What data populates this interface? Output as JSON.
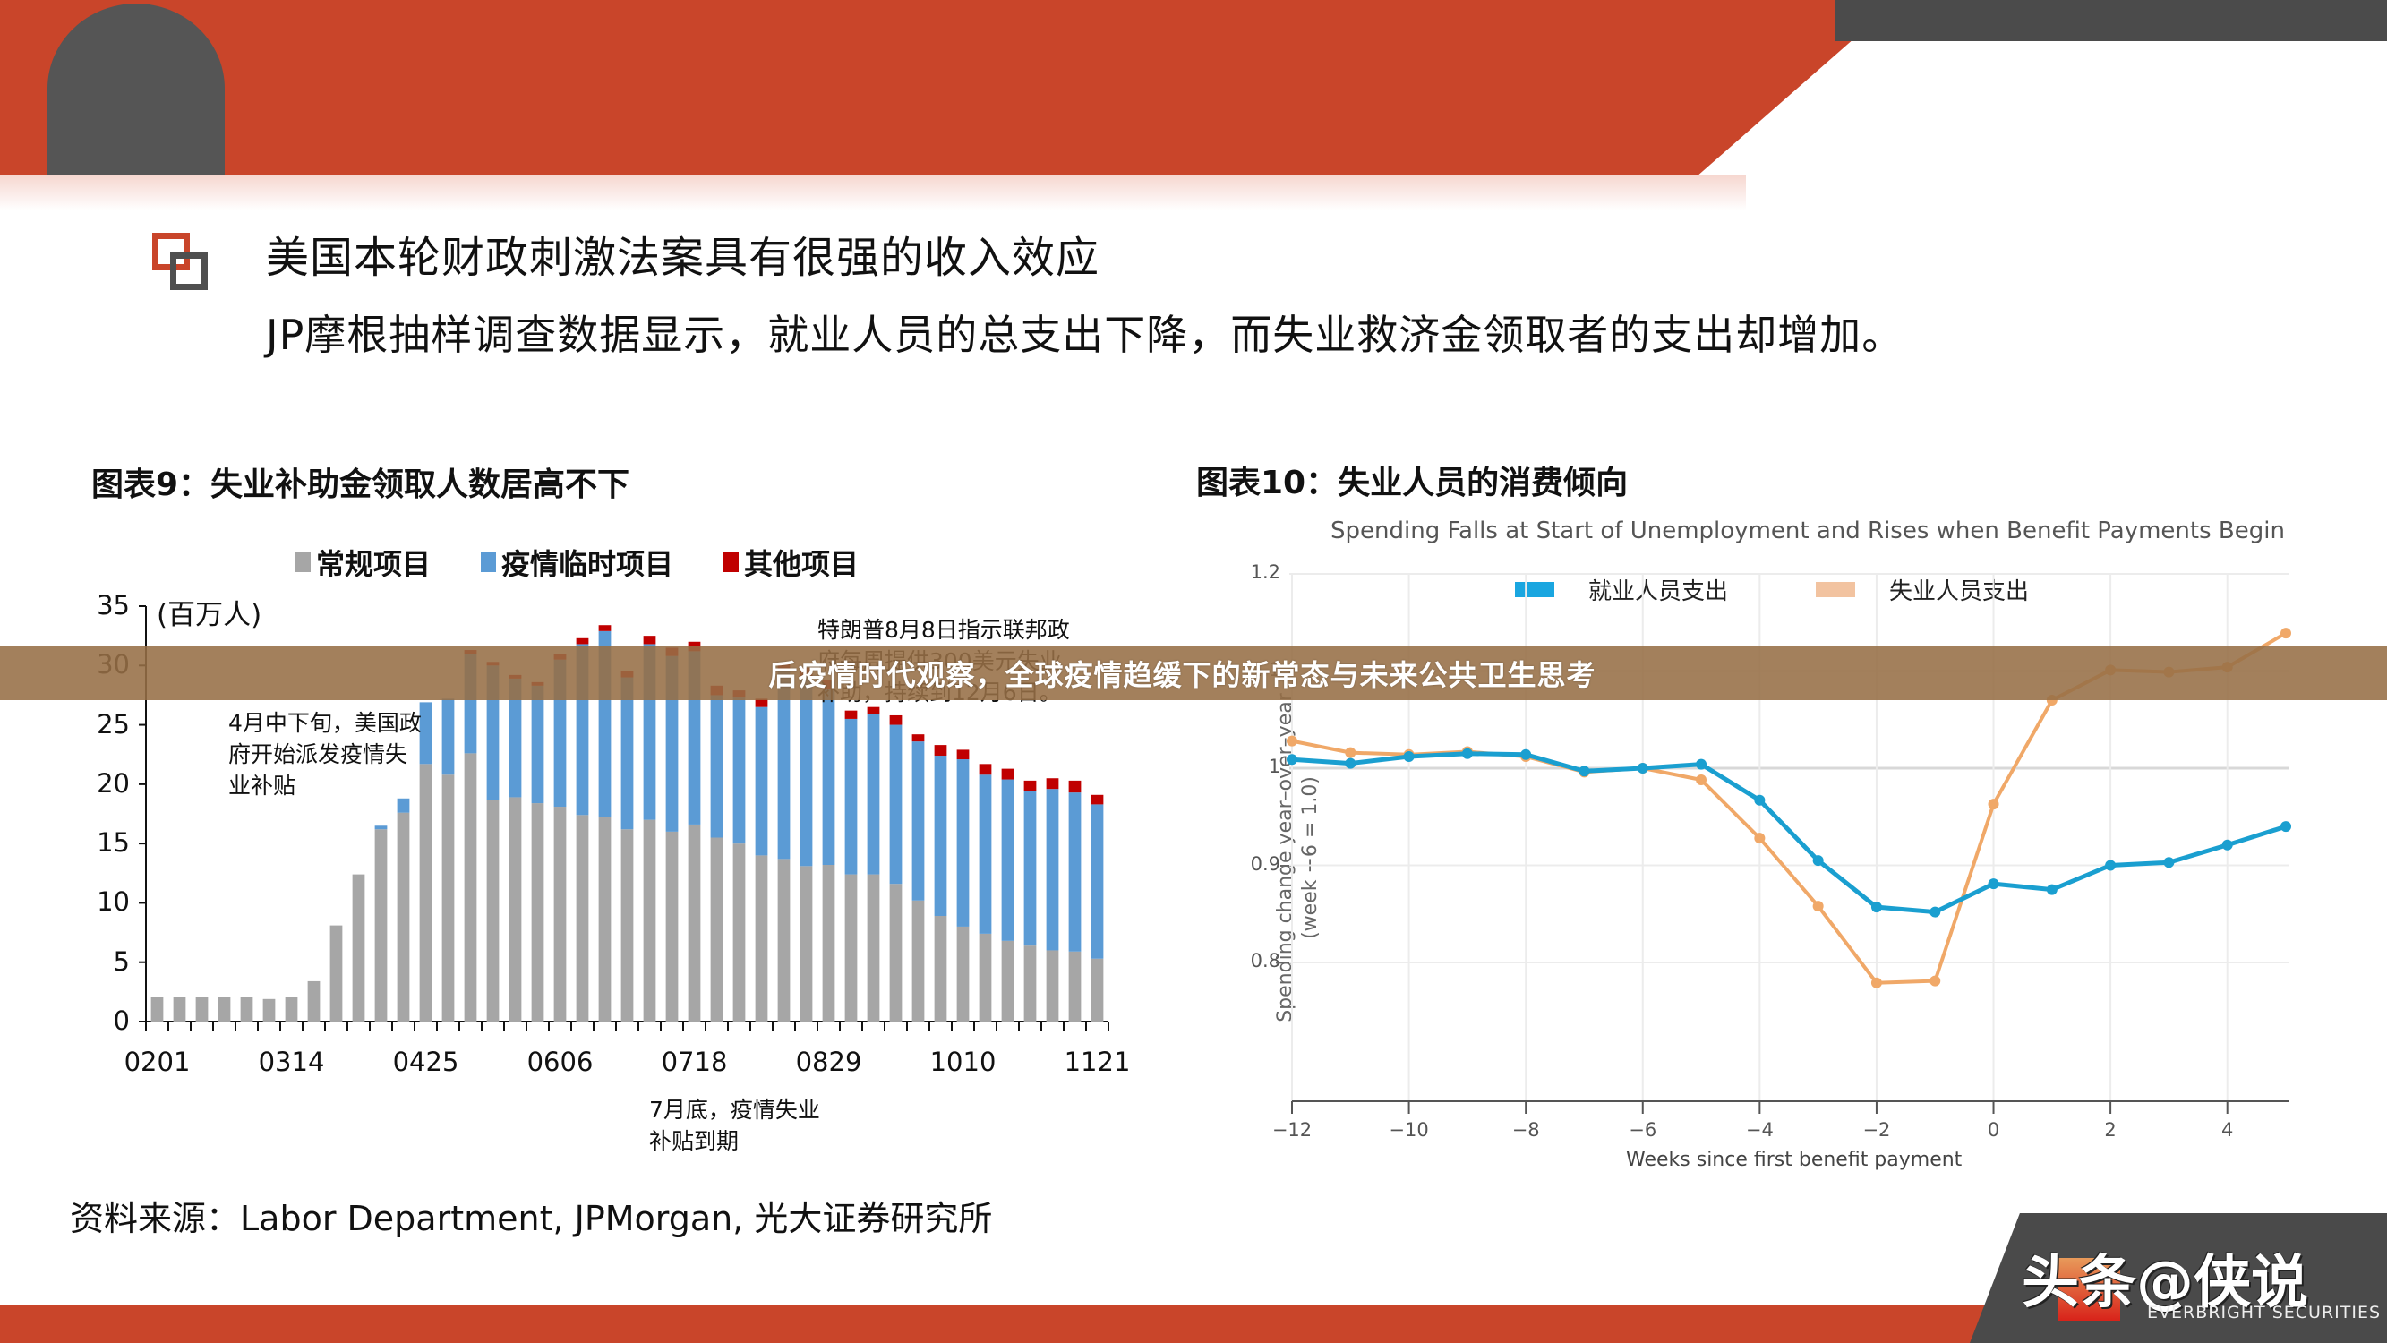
{
  "banner": {
    "text": "后疫情时代观察，全球疫情趋缓下的新常态与未来公共卫生思考"
  },
  "header": {
    "headline": "美国本轮财政刺激法案具有很强的收入效应",
    "subline": "JP摩根抽样调查数据显示，就业人员的总支出下降，而失业救济金领取者的支出却增加。"
  },
  "left_chart": {
    "title": "图表9：失业补助金领取人数居高不下",
    "unit": "(百万人)",
    "legend": [
      {
        "label": "常规项目",
        "color": "#a6a6a6"
      },
      {
        "label": "疫情临时项目",
        "color": "#5b9bd5"
      },
      {
        "label": "其他项目",
        "color": "#c00000"
      }
    ],
    "y_ticks": [
      "35",
      "30",
      "25",
      "20",
      "15",
      "10",
      "5",
      "0"
    ],
    "x_ticks": [
      "0201",
      "0314",
      "0425",
      "0606",
      "0718",
      "0829",
      "1010",
      "1121"
    ],
    "annotations": {
      "april": [
        "4月中下旬，美国政",
        "府开始派发疫情失",
        "业补贴"
      ],
      "august": [
        "特朗普8月8日指示联邦政",
        "府每周提供300美元失业",
        "补助，持续到12月6日。"
      ],
      "july": [
        "7月底，疫情失业",
        "补贴到期"
      ]
    },
    "source": "资料来源：Labor Department, JPMorgan, 光大证券研究所"
  },
  "right_chart": {
    "title": "图表10：失业人员的消费倾向",
    "subtitle": "Spending Falls at Start of Unemployment and Rises when Benefit Payments Begin",
    "legend": [
      {
        "label": "就业人员支出",
        "color": "#1a9fd0"
      },
      {
        "label": "失业人员支出",
        "color": "#f2c3a0"
      }
    ],
    "y_ticks": [
      "1.2",
      "1.1",
      "1",
      "0.9",
      "0.8"
    ],
    "x_ticks": [
      "-12",
      "-10",
      "-8",
      "-6",
      "-4",
      "-2",
      "0",
      "2",
      "4"
    ],
    "y_title_line1": "Spending change year–over–year",
    "y_title_line2": "(week −6 = 1.0)",
    "x_title": "Weeks since first benefit payment"
  },
  "footer": {
    "logo_text": "头条@侠说",
    "logo_sub": "EVERBRIGHT SECURITIES"
  },
  "chart_data": [
    {
      "type": "bar",
      "stacked": true,
      "title": "图表9：失业补助金领取人数居高不下",
      "ylabel": "(百万人)",
      "ylim": [
        0,
        35
      ],
      "x_tick_labels": [
        "0201",
        "0314",
        "0425",
        "0606",
        "0718",
        "0829",
        "1010",
        "1121"
      ],
      "n_bars": 43,
      "series": [
        {
          "name": "常规项目",
          "color": "#a6a6a6",
          "values": [
            2.1,
            2.1,
            2.1,
            2.1,
            2.1,
            1.9,
            2.1,
            3.4,
            8.1,
            12.4,
            16.2,
            17.6,
            21.7,
            20.8,
            22.6,
            18.7,
            18.9,
            18.4,
            18.1,
            17.4,
            17.2,
            16.2,
            17.0,
            16.0,
            16.6,
            15.5,
            15.0,
            14.0,
            13.7,
            13.1,
            13.2,
            12.4,
            12.4,
            11.6,
            10.2,
            8.9,
            8.0,
            7.4,
            6.8,
            6.4,
            6.0,
            5.9,
            5.3
          ]
        },
        {
          "name": "疫情临时项目",
          "color": "#5b9bd5",
          "values": [
            0,
            0,
            0,
            0,
            0,
            0,
            0,
            0,
            0,
            0,
            0.3,
            1.2,
            5.2,
            6.4,
            8.4,
            11.3,
            10.0,
            9.9,
            12.4,
            14.4,
            15.7,
            12.8,
            14.8,
            14.8,
            14.6,
            12.0,
            12.3,
            12.5,
            15.8,
            16.0,
            14.8,
            13.1,
            13.5,
            13.4,
            13.4,
            13.5,
            14.1,
            13.4,
            13.6,
            13.0,
            13.6,
            13.4,
            13.0
          ]
        },
        {
          "name": "其他项目",
          "color": "#c00000",
          "values": [
            0,
            0,
            0,
            0,
            0,
            0,
            0,
            0,
            0,
            0,
            0,
            0,
            0,
            0,
            0.3,
            0.3,
            0.3,
            0.3,
            0.5,
            0.5,
            0.5,
            0.5,
            0.7,
            0.7,
            0.8,
            0.8,
            0.6,
            0.7,
            0.6,
            0.7,
            0.8,
            0.7,
            0.6,
            0.8,
            0.6,
            0.9,
            0.8,
            0.9,
            0.9,
            0.9,
            0.9,
            1.0,
            0.8
          ]
        }
      ],
      "annotations": [
        "4月中下旬，美国政府开始派发疫情失业补贴",
        "特朗普8月8日指示联邦政府每周提供300美元失业补助，持续到12月6日。",
        "7月底，疫情失业补贴到期"
      ],
      "legend_position": "top"
    },
    {
      "type": "line",
      "title": "Spending Falls at Start of Unemployment and Rises when Benefit Payments Begin",
      "xlabel": "Weeks since first benefit payment",
      "ylabel": "Spending change year-over-year (week -6 = 1.0)",
      "ylim": [
        0.75,
        1.2
      ],
      "xlim": [
        -12,
        5
      ],
      "x": [
        -12,
        -11,
        -10,
        -9,
        -8,
        -7,
        -6,
        -5,
        -4,
        -3,
        -2,
        -1,
        0,
        1,
        2,
        3,
        4,
        5
      ],
      "series": [
        {
          "name": "就业人员支出",
          "color": "#1a9fd0",
          "values": [
            1.009,
            1.005,
            1.012,
            1.015,
            1.014,
            0.997,
            1.0,
            1.004,
            0.967,
            0.905,
            0.857,
            0.852,
            0.881,
            0.875,
            0.9,
            0.903,
            0.921,
            0.94
          ]
        },
        {
          "name": "失业人员支出",
          "color": "#f0a868",
          "values": [
            1.028,
            1.016,
            1.014,
            1.017,
            1.012,
            0.996,
            1.0,
            0.988,
            0.928,
            0.858,
            0.779,
            0.781,
            0.963,
            1.07,
            1.101,
            1.099,
            1.104,
            1.139
          ]
        }
      ],
      "grid": true,
      "legend_position": "top"
    }
  ]
}
